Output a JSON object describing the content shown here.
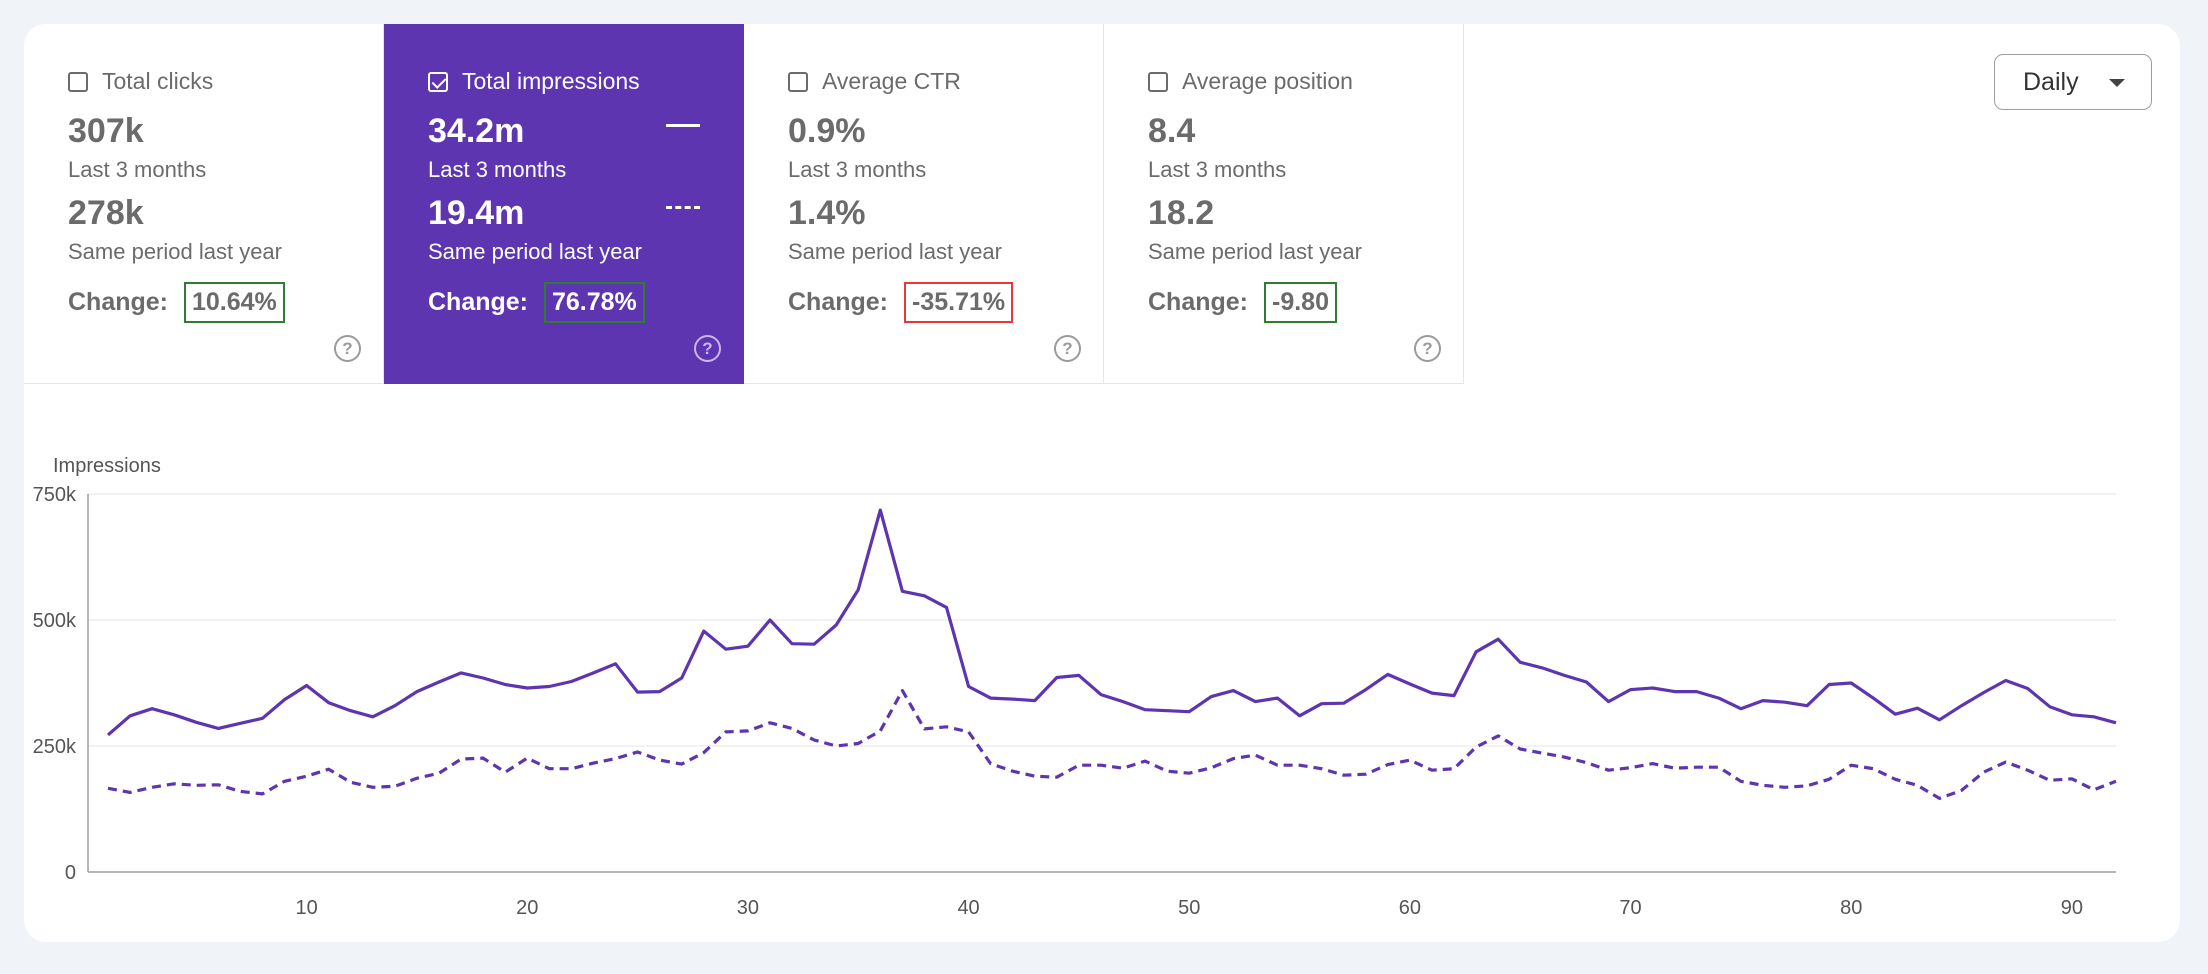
{
  "cards": [
    {
      "title": "Total clicks",
      "checked": false,
      "value": "307k",
      "period": "Last 3 months",
      "prev_value": "278k",
      "prev_period": "Same period last year",
      "change_label": "Change:",
      "change": "10.64%",
      "change_color": "#2e7d32",
      "help": "?"
    },
    {
      "title": "Total impressions",
      "checked": true,
      "value": "34.2m",
      "period": "Last 3 months",
      "prev_value": "19.4m",
      "prev_period": "Same period last year",
      "change_label": "Change:",
      "change": "76.78%",
      "change_color": "#2e7d32",
      "help": "?"
    },
    {
      "title": "Average CTR",
      "checked": false,
      "value": "0.9%",
      "period": "Last 3 months",
      "prev_value": "1.4%",
      "prev_period": "Same period last year",
      "change_label": "Change:",
      "change": "-35.71%",
      "change_color": "#e53935",
      "help": "?"
    },
    {
      "title": "Average position",
      "checked": false,
      "value": "8.4",
      "period": "Last 3 months",
      "prev_value": "18.2",
      "prev_period": "Same period last year",
      "change_label": "Change:",
      "change": "-9.80",
      "change_color": "#2e7d32",
      "help": "?"
    }
  ],
  "active_color": "#5e35b1",
  "granularity": {
    "selected": "Daily",
    "icon": "caret-down-icon"
  },
  "chart_data": {
    "type": "line",
    "title": "",
    "ylabel": "Impressions",
    "xlabel": "",
    "ylim": [
      0,
      750000
    ],
    "yticks": [
      0,
      250000,
      500000,
      750000
    ],
    "ytick_labels": [
      "0",
      "250k",
      "500k",
      "750k"
    ],
    "xlim": [
      1,
      92
    ],
    "xticks": [
      10,
      20,
      30,
      40,
      50,
      60,
      70,
      80,
      90
    ],
    "xtick_labels": [
      "10",
      "20",
      "30",
      "40",
      "50",
      "60",
      "70",
      "80",
      "90"
    ],
    "grid": true,
    "color": "#5e35b1",
    "x": [
      1,
      2,
      3,
      4,
      5,
      6,
      7,
      8,
      9,
      10,
      11,
      12,
      13,
      14,
      15,
      16,
      17,
      18,
      19,
      20,
      21,
      22,
      23,
      24,
      25,
      26,
      27,
      28,
      29,
      30,
      31,
      32,
      33,
      34,
      35,
      36,
      37,
      38,
      39,
      40,
      41,
      42,
      43,
      44,
      45,
      46,
      47,
      48,
      49,
      50,
      51,
      52,
      53,
      54,
      55,
      56,
      57,
      58,
      59,
      60,
      61,
      62,
      63,
      64,
      65,
      66,
      67,
      68,
      69,
      70,
      71,
      72,
      73,
      74,
      75,
      76,
      77,
      78,
      79,
      80,
      81,
      82,
      83,
      84,
      85,
      86,
      87,
      88,
      89,
      90,
      91,
      92
    ],
    "series": [
      {
        "style": "solid",
        "values": [
          272000,
          310000,
          324000,
          312000,
          297000,
          285000,
          295000,
          305000,
          342000,
          370000,
          336000,
          320000,
          308000,
          330000,
          358000,
          377000,
          395000,
          385000,
          372000,
          365000,
          368000,
          378000,
          395000,
          413000,
          357000,
          358000,
          385000,
          478000,
          442000,
          448000,
          500000,
          453000,
          452000,
          490000,
          560000,
          718000,
          557000,
          548000,
          525000,
          368000,
          345000,
          343000,
          340000,
          386000,
          390000,
          352000,
          338000,
          322000,
          320000,
          318000,
          348000,
          360000,
          338000,
          345000,
          310000,
          334000,
          335000,
          362000,
          392000,
          373000,
          355000,
          350000,
          437000,
          462000,
          416000,
          405000,
          390000,
          377000,
          338000,
          362000,
          365000,
          358000,
          358000,
          345000,
          324000,
          340000,
          337000,
          330000,
          372000,
          375000,
          345000,
          313000,
          325000,
          302000,
          330000,
          356000,
          380000,
          364000,
          328000,
          312000,
          308000,
          296000
        ]
      },
      {
        "style": "dashed",
        "values": [
          166000,
          158000,
          168000,
          175000,
          172000,
          173000,
          160000,
          155000,
          180000,
          190000,
          204000,
          178000,
          168000,
          170000,
          186000,
          196000,
          224000,
          226000,
          198000,
          226000,
          205000,
          205000,
          216000,
          225000,
          238000,
          222000,
          214000,
          237000,
          278000,
          280000,
          296000,
          285000,
          262000,
          250000,
          255000,
          280000,
          360000,
          284000,
          288000,
          278000,
          215000,
          200000,
          190000,
          188000,
          212000,
          212000,
          206000,
          220000,
          200000,
          196000,
          207000,
          225000,
          232000,
          212000,
          212000,
          205000,
          192000,
          194000,
          213000,
          222000,
          202000,
          205000,
          248000,
          270000,
          244000,
          236000,
          228000,
          217000,
          202000,
          207000,
          215000,
          206000,
          208000,
          208000,
          180000,
          172000,
          168000,
          171000,
          184000,
          212000,
          205000,
          184000,
          172000,
          146000,
          162000,
          198000,
          218000,
          202000,
          182000,
          185000,
          163000,
          180000
        ]
      }
    ]
  }
}
